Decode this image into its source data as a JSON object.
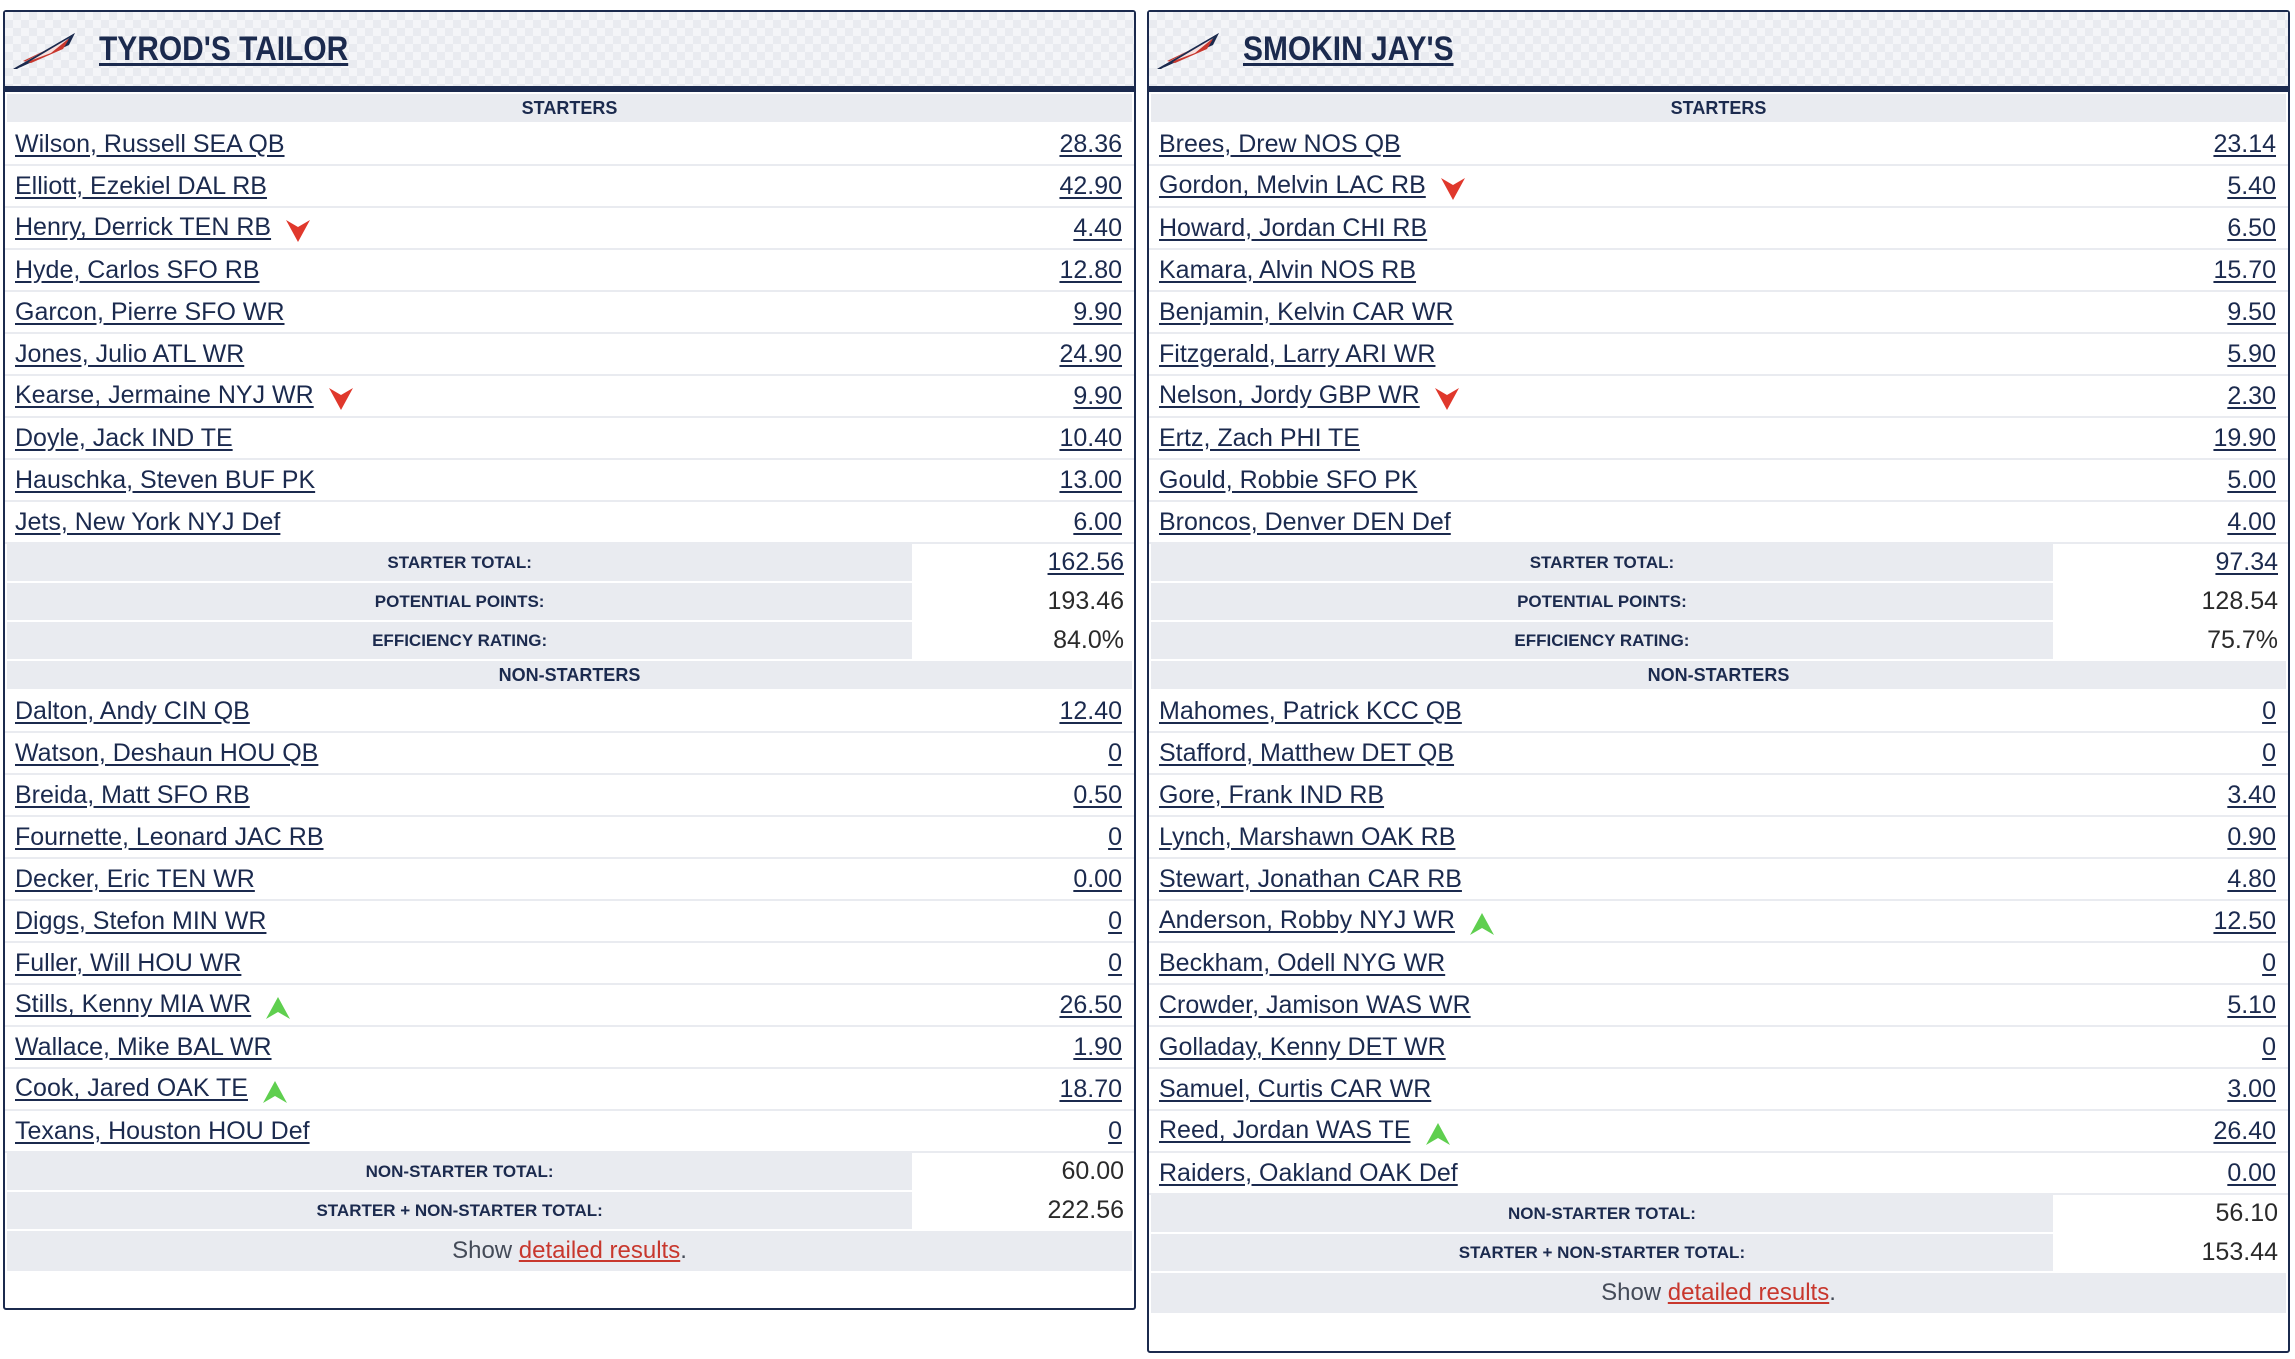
{
  "colors": {
    "navy": "#1b2a4e",
    "section_bg": "#e9ebf0",
    "down_arrow": "#e0382c",
    "up_arrow": "#5fcf4f",
    "link_red": "#c8372d"
  },
  "teams": [
    {
      "name": "TYROD'S TAILOR",
      "starters_label": "STARTERS",
      "starters": [
        {
          "name": "Wilson, Russell SEA QB",
          "points": "28.36",
          "trend": ""
        },
        {
          "name": "Elliott, Ezekiel DAL RB",
          "points": "42.90",
          "trend": ""
        },
        {
          "name": "Henry, Derrick TEN RB",
          "points": "4.40",
          "trend": "down"
        },
        {
          "name": "Hyde, Carlos SFO RB",
          "points": "12.80",
          "trend": ""
        },
        {
          "name": "Garcon, Pierre SFO WR",
          "points": "9.90",
          "trend": ""
        },
        {
          "name": "Jones, Julio ATL WR",
          "points": "24.90",
          "trend": ""
        },
        {
          "name": "Kearse, Jermaine NYJ WR",
          "points": "9.90",
          "trend": "down"
        },
        {
          "name": "Doyle, Jack IND TE",
          "points": "10.40",
          "trend": ""
        },
        {
          "name": "Hauschka, Steven BUF PK",
          "points": "13.00",
          "trend": ""
        },
        {
          "name": "Jets, New York NYJ Def",
          "points": "6.00",
          "trend": ""
        }
      ],
      "starter_total_label": "STARTER TOTAL:",
      "starter_total": "162.56",
      "potential_label": "POTENTIAL POINTS:",
      "potential_points": "193.46",
      "efficiency_label": "EFFICIENCY RATING:",
      "efficiency": "84.0%",
      "nonstarters_label": "NON-STARTERS",
      "nonstarters": [
        {
          "name": "Dalton, Andy CIN QB",
          "points": "12.40",
          "trend": ""
        },
        {
          "name": "Watson, Deshaun HOU QB",
          "points": "0",
          "trend": ""
        },
        {
          "name": "Breida, Matt SFO RB",
          "points": "0.50",
          "trend": ""
        },
        {
          "name": "Fournette, Leonard JAC RB",
          "points": "0",
          "trend": ""
        },
        {
          "name": "Decker, Eric TEN WR",
          "points": "0.00",
          "trend": ""
        },
        {
          "name": "Diggs, Stefon MIN WR",
          "points": "0",
          "trend": ""
        },
        {
          "name": "Fuller, Will HOU WR",
          "points": "0",
          "trend": ""
        },
        {
          "name": "Stills, Kenny MIA WR",
          "points": "26.50",
          "trend": "up"
        },
        {
          "name": "Wallace, Mike BAL WR",
          "points": "1.90",
          "trend": ""
        },
        {
          "name": "Cook, Jared OAK TE",
          "points": "18.70",
          "trend": "up"
        },
        {
          "name": "Texans, Houston HOU Def",
          "points": "0",
          "trend": ""
        }
      ],
      "nonstarter_total_label": "NON-STARTER TOTAL:",
      "nonstarter_total": "60.00",
      "combined_label": "STARTER + NON-STARTER TOTAL:",
      "combined_total": "222.56",
      "footer_prefix": "Show ",
      "footer_link": "detailed results",
      "footer_suffix": "."
    },
    {
      "name": "SMOKIN JAY'S",
      "starters_label": "STARTERS",
      "starters": [
        {
          "name": "Brees, Drew NOS QB",
          "points": "23.14",
          "trend": ""
        },
        {
          "name": "Gordon, Melvin LAC RB",
          "points": "5.40",
          "trend": "down"
        },
        {
          "name": "Howard, Jordan CHI RB",
          "points": "6.50",
          "trend": ""
        },
        {
          "name": "Kamara, Alvin NOS RB",
          "points": "15.70",
          "trend": ""
        },
        {
          "name": "Benjamin, Kelvin CAR WR",
          "points": "9.50",
          "trend": ""
        },
        {
          "name": "Fitzgerald, Larry ARI WR",
          "points": "5.90",
          "trend": ""
        },
        {
          "name": "Nelson, Jordy GBP WR",
          "points": "2.30",
          "trend": "down"
        },
        {
          "name": "Ertz, Zach PHI TE",
          "points": "19.90",
          "trend": ""
        },
        {
          "name": "Gould, Robbie SFO PK",
          "points": "5.00",
          "trend": ""
        },
        {
          "name": "Broncos, Denver DEN Def",
          "points": "4.00",
          "trend": ""
        }
      ],
      "starter_total_label": "STARTER TOTAL:",
      "starter_total": "97.34",
      "potential_label": "POTENTIAL POINTS:",
      "potential_points": "128.54",
      "efficiency_label": "EFFICIENCY RATING:",
      "efficiency": "75.7%",
      "nonstarters_label": "NON-STARTERS",
      "nonstarters": [
        {
          "name": "Mahomes, Patrick KCC QB",
          "points": "0",
          "trend": ""
        },
        {
          "name": "Stafford, Matthew DET QB",
          "points": "0",
          "trend": ""
        },
        {
          "name": "Gore, Frank IND RB",
          "points": "3.40",
          "trend": ""
        },
        {
          "name": "Lynch, Marshawn OAK RB",
          "points": "0.90",
          "trend": ""
        },
        {
          "name": "Stewart, Jonathan CAR RB",
          "points": "4.80",
          "trend": ""
        },
        {
          "name": "Anderson, Robby NYJ WR",
          "points": "12.50",
          "trend": "up"
        },
        {
          "name": "Beckham, Odell NYG WR",
          "points": "0",
          "trend": ""
        },
        {
          "name": "Crowder, Jamison WAS WR",
          "points": "5.10",
          "trend": ""
        },
        {
          "name": "Golladay, Kenny DET WR",
          "points": "0",
          "trend": ""
        },
        {
          "name": "Samuel, Curtis CAR WR",
          "points": "3.00",
          "trend": ""
        },
        {
          "name": "Reed, Jordan WAS TE",
          "points": "26.40",
          "trend": "up"
        },
        {
          "name": "Raiders, Oakland OAK Def",
          "points": "0.00",
          "trend": ""
        }
      ],
      "nonstarter_total_label": "NON-STARTER TOTAL:",
      "nonstarter_total": "56.10",
      "combined_label": "STARTER + NON-STARTER TOTAL:",
      "combined_total": "153.44",
      "footer_prefix": "Show ",
      "footer_link": "detailed results",
      "footer_suffix": "."
    }
  ]
}
